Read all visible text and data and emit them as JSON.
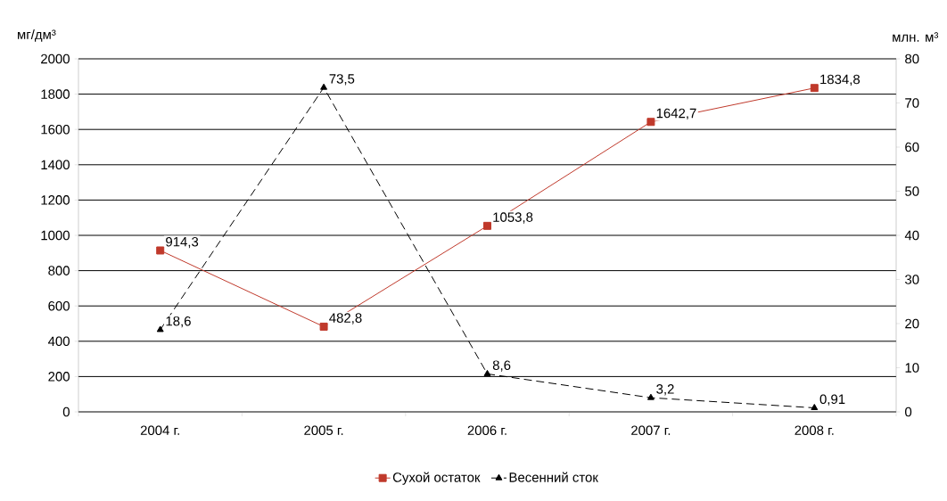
{
  "chart_data": {
    "type": "line",
    "categories": [
      "2004 г.",
      "2005 г.",
      "2006 г.",
      "2007 г.",
      "2008 г."
    ],
    "ylabel": "мг/дм³",
    "y2label": "млн. м³",
    "ylim": [
      0,
      2000
    ],
    "yticks": [
      0,
      200,
      400,
      600,
      800,
      1000,
      1200,
      1400,
      1600,
      1800,
      2000
    ],
    "y2lim": [
      0,
      80
    ],
    "y2ticks": [
      0,
      10,
      20,
      30,
      40,
      50,
      60,
      70,
      80
    ],
    "grid": "y",
    "legend": "bottom",
    "series": [
      {
        "name": "Сухой остаток",
        "color": "#c0392b",
        "marker": "square",
        "line_style": "solid",
        "values": [
          914.3,
          482.8,
          1053.8,
          1642.7,
          1834.8
        ],
        "value_labels": [
          "914,3",
          "482,8",
          "1053,8",
          "1642,7",
          "1834,8"
        ]
      },
      {
        "name": "Весенний сток",
        "color": "#000000",
        "marker": "triangle",
        "line_style": "dashed",
        "axis": "y2",
        "values": [
          18.6,
          73.5,
          8.6,
          3.2,
          0.91
        ],
        "value_labels": [
          "18,6",
          "73,5",
          "8,6",
          "3,2",
          "0,91"
        ]
      }
    ]
  }
}
